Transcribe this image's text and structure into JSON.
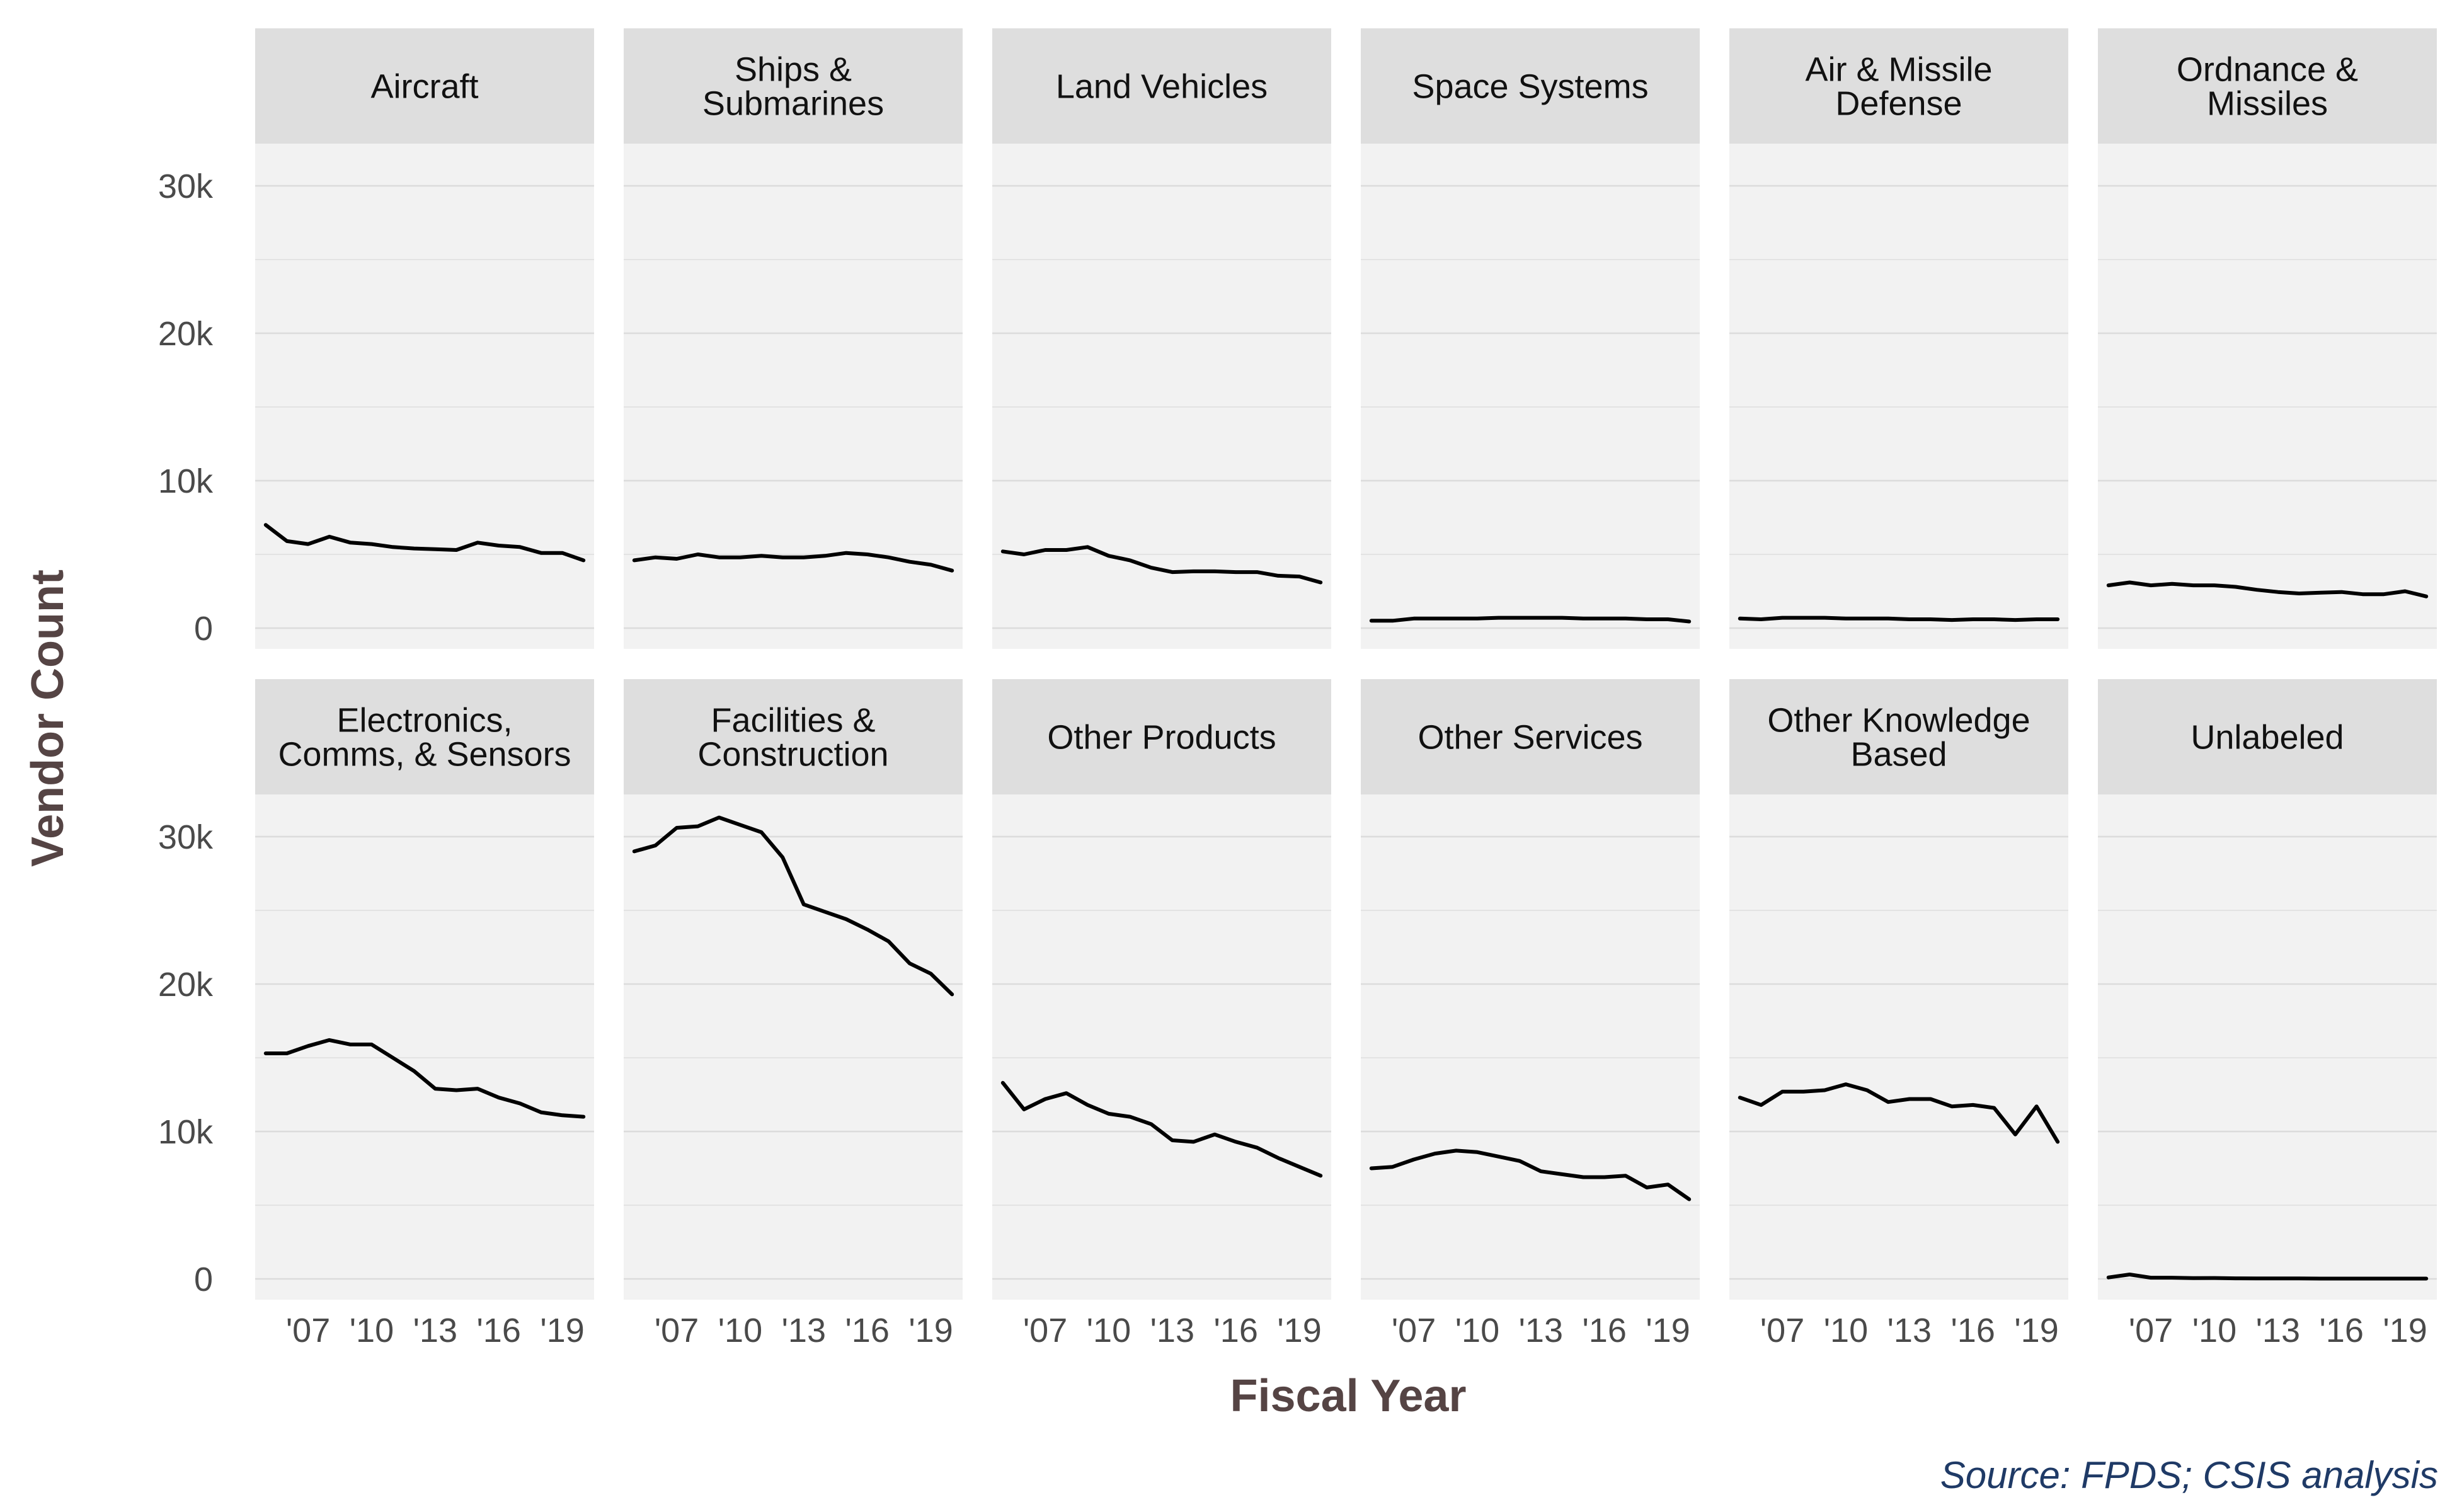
{
  "chart_data": {
    "type": "line",
    "facet_layout": "2 rows x 6 columns, shared axes",
    "xlabel": "Fiscal Year",
    "ylabel": "Vendor Count",
    "source": "Source: FPDS; CSIS analysis",
    "x": [
      2005,
      2006,
      2007,
      2008,
      2009,
      2010,
      2011,
      2012,
      2013,
      2014,
      2015,
      2016,
      2017,
      2018,
      2019,
      2020
    ],
    "xlim": [
      2004.5,
      2020.5
    ],
    "x_tick_values": [
      2007,
      2010,
      2013,
      2016,
      2019
    ],
    "x_tick_labels": [
      "'07",
      "'10",
      "'13",
      "'16",
      "'19"
    ],
    "ylim": [
      -1400,
      30000
    ],
    "y_tick_values": [
      0,
      10000,
      20000,
      30000
    ],
    "y_tick_labels": [
      "0",
      "10k",
      "20k",
      "30k"
    ],
    "grid": true,
    "line_color": "#000000",
    "panel_background": "#f2f2f2",
    "strip_background": "#dedede",
    "panels": [
      {
        "title": [
          "Aircraft"
        ],
        "values": [
          7000,
          5900,
          5700,
          6200,
          5800,
          5700,
          5500,
          5400,
          5350,
          5300,
          5800,
          5600,
          5500,
          5100,
          5100,
          4600
        ]
      },
      {
        "title": [
          "Ships &",
          "Submarines"
        ],
        "values": [
          4600,
          4800,
          4700,
          5000,
          4800,
          4800,
          4900,
          4800,
          4800,
          4900,
          5100,
          5000,
          4800,
          4500,
          4300,
          3900
        ]
      },
      {
        "title": [
          "Land Vehicles"
        ],
        "values": [
          5200,
          5000,
          5300,
          5300,
          5500,
          4900,
          4600,
          4100,
          3800,
          3850,
          3850,
          3800,
          3800,
          3550,
          3500,
          3100
        ]
      },
      {
        "title": [
          "Space Systems"
        ],
        "values": [
          500,
          500,
          650,
          650,
          650,
          650,
          700,
          700,
          700,
          700,
          650,
          650,
          650,
          600,
          600,
          450
        ]
      },
      {
        "title": [
          "Air & Missile",
          "Defense"
        ],
        "values": [
          650,
          600,
          700,
          700,
          700,
          650,
          650,
          650,
          600,
          600,
          550,
          600,
          600,
          550,
          600,
          600
        ]
      },
      {
        "title": [
          "Ordnance &",
          "Missiles"
        ],
        "values": [
          2900,
          3100,
          2900,
          3000,
          2900,
          2900,
          2800,
          2600,
          2450,
          2350,
          2400,
          2450,
          2300,
          2300,
          2500,
          2150
        ]
      },
      {
        "title": [
          "Electronics,",
          "Comms, & Sensors"
        ],
        "values": [
          15300,
          15300,
          15800,
          16200,
          15900,
          15900,
          15000,
          14100,
          12900,
          12800,
          12900,
          12300,
          11900,
          11300,
          11100,
          11000
        ]
      },
      {
        "title": [
          "Facilities &",
          "Construction"
        ],
        "values": [
          29000,
          29400,
          30600,
          30700,
          31300,
          30800,
          30300,
          28600,
          25400,
          24900,
          24400,
          23700,
          22900,
          21400,
          20700,
          19300
        ]
      },
      {
        "title": [
          "Other Products"
        ],
        "values": [
          13300,
          11500,
          12200,
          12600,
          11800,
          11200,
          11000,
          10500,
          9400,
          9300,
          9800,
          9300,
          8900,
          8200,
          7600,
          7000
        ]
      },
      {
        "title": [
          "Other Services"
        ],
        "values": [
          7500,
          7600,
          8100,
          8500,
          8700,
          8600,
          8300,
          8000,
          7300,
          7100,
          6900,
          6900,
          7000,
          6200,
          6400,
          5400
        ]
      },
      {
        "title": [
          "Other Knowledge",
          "Based"
        ],
        "values": [
          12300,
          11800,
          12700,
          12700,
          12800,
          13200,
          12800,
          12000,
          12200,
          12200,
          11700,
          11800,
          11600,
          9800,
          11700,
          9300
        ]
      },
      {
        "title": [
          "Unlabeled"
        ],
        "values": [
          100,
          300,
          80,
          80,
          50,
          60,
          40,
          30,
          30,
          30,
          20,
          20,
          20,
          20,
          20,
          20
        ]
      }
    ]
  }
}
